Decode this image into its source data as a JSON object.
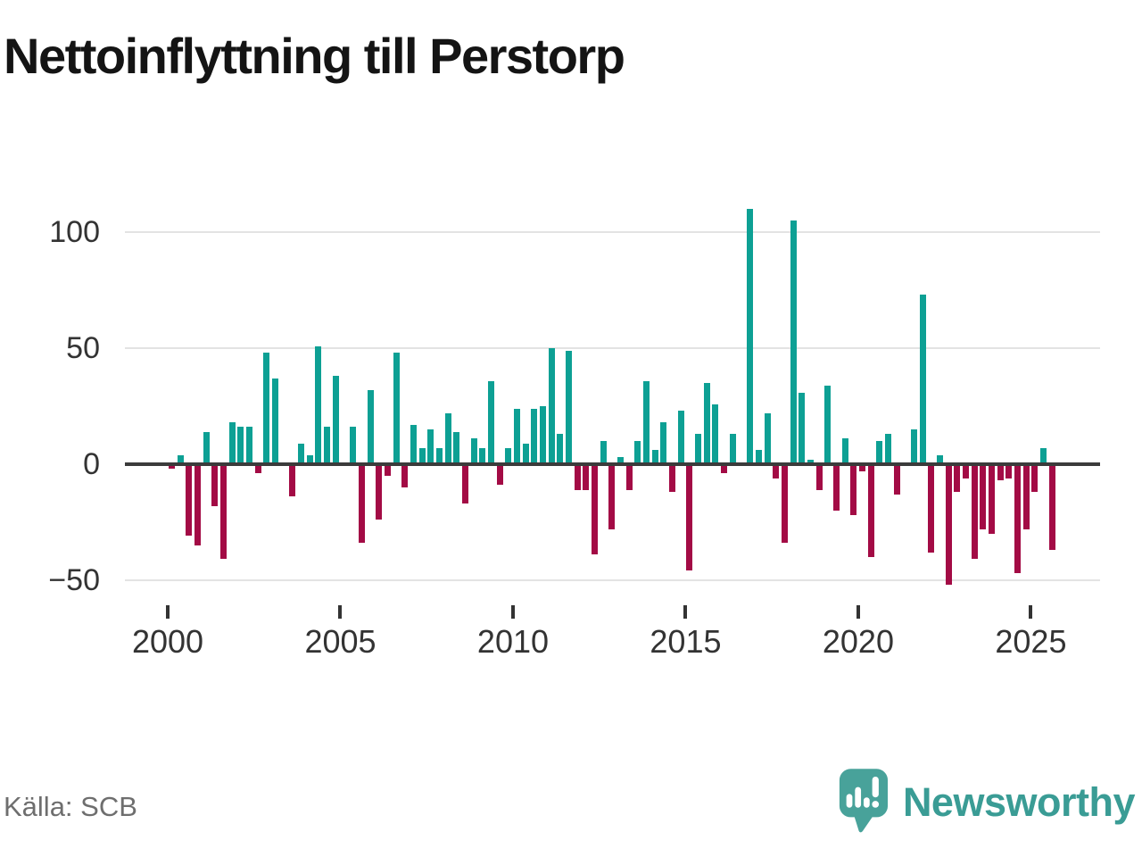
{
  "chart_data": {
    "type": "bar",
    "title": "Nettoinflyttning till Perstorp",
    "source": "Källa: SCB",
    "period": "quarterly",
    "start_year": 2000,
    "values": [
      -2,
      4,
      -31,
      -35,
      14,
      -18,
      -41,
      18,
      16,
      16,
      -4,
      48,
      37,
      0,
      -14,
      9,
      4,
      51,
      16,
      38,
      0,
      16,
      -34,
      32,
      -24,
      -5,
      48,
      -10,
      17,
      7,
      15,
      7,
      22,
      14,
      -17,
      11,
      7,
      36,
      -9,
      7,
      24,
      9,
      24,
      25,
      50,
      13,
      49,
      -11,
      -11,
      -39,
      10,
      -28,
      3,
      -11,
      10,
      36,
      6,
      18,
      -12,
      23,
      -46,
      13,
      35,
      26,
      -4,
      13,
      0,
      110,
      6,
      22,
      -6,
      -34,
      105,
      31,
      2,
      -11,
      34,
      -20,
      11,
      -22,
      -3,
      -40,
      10,
      13,
      -13,
      0,
      15,
      73,
      -38,
      4,
      -52,
      -12,
      -6,
      -41,
      -28,
      -30,
      -7,
      -6,
      -47,
      -28,
      -12,
      7,
      -37
    ],
    "x_tick_labels": [
      "2000",
      "2005",
      "2010",
      "2015",
      "2020",
      "2025"
    ],
    "y_tick_values": [
      100,
      50,
      0,
      -50
    ],
    "y_tick_labels": [
      "100",
      "50",
      "0",
      "−50"
    ],
    "ylim": [
      -60,
      115
    ],
    "grid": "horizontal",
    "legend": "none",
    "positive_color": "#0da094",
    "negative_color": "#a30b45",
    "zero_line_color": "#3b3b3b",
    "gridline_color": "#e3e3e3"
  },
  "brand": {
    "name": "Newsworthy",
    "color": "#3a9c95",
    "icon": "speech-bubble-bar-chart-icon"
  }
}
